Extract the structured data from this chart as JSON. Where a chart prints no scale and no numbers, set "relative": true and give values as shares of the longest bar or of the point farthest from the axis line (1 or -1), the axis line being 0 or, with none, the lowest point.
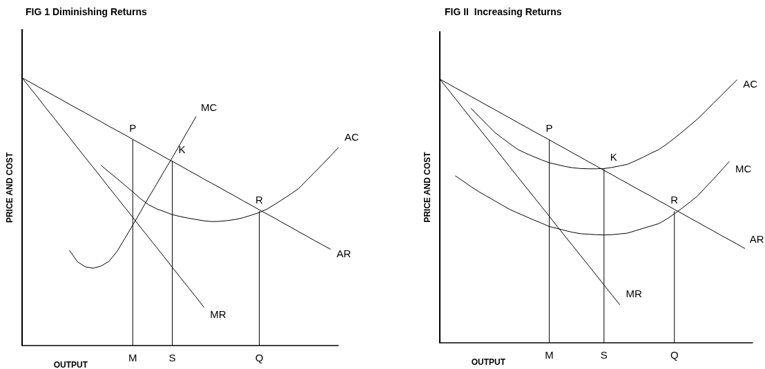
{
  "chart_data": [
    {
      "type": "line",
      "title": "FIG 1 Diminishing Returns",
      "xlabel": "OUTPUT",
      "ylabel": "PRICE AND COST",
      "relative": true,
      "marker": "none",
      "line_style": "solid",
      "grid": false,
      "legend": false,
      "tick_labels": "x",
      "categories": [
        null,
        null,
        null,
        null,
        null,
        null,
        null,
        null,
        null,
        null,
        null,
        null,
        null,
        null,
        "M",
        null,
        null,
        null,
        null,
        "S",
        null,
        null,
        null,
        null,
        null,
        null,
        null,
        null,
        null,
        null,
        "Q",
        null,
        null,
        null,
        null,
        null,
        null,
        null,
        null,
        null,
        null
      ],
      "series": [
        {
          "name": "AR",
          "color": "#000000",
          "values": [
            1.0,
            0.984,
            0.967,
            0.951,
            0.934,
            0.918,
            0.901,
            0.885,
            0.869,
            0.852,
            0.836,
            0.819,
            0.803,
            0.787,
            0.77,
            0.754,
            0.737,
            0.721,
            0.704,
            0.688,
            0.672,
            0.655,
            0.639,
            0.622,
            0.606,
            0.59,
            0.573,
            0.557,
            0.54,
            0.524,
            0.507,
            0.491,
            0.475,
            0.458,
            0.442,
            0.425,
            0.409,
            0.392,
            0.376,
            0.36,
            null
          ]
        },
        {
          "name": "MR",
          "color": "#000000",
          "values": [
            1.0,
            0.963,
            0.926,
            0.888,
            0.851,
            0.814,
            0.777,
            0.739,
            0.702,
            0.665,
            0.628,
            0.59,
            0.553,
            0.516,
            0.479,
            0.441,
            0.404,
            0.367,
            0.33,
            0.292,
            0.255,
            0.218,
            0.181,
            0.143,
            null,
            null,
            null,
            null,
            null,
            null,
            null,
            null,
            null,
            null,
            null,
            null,
            null,
            null,
            null,
            null,
            null
          ]
        },
        {
          "name": "MC",
          "color": "#000000",
          "values": [
            null,
            null,
            null,
            null,
            null,
            null,
            0.355,
            0.313,
            0.294,
            0.289,
            0.297,
            0.315,
            0.351,
            0.4,
            0.45,
            0.501,
            0.553,
            0.602,
            0.653,
            0.702,
            0.753,
            0.804,
            0.855,
            null,
            null,
            null,
            null,
            null,
            null,
            null,
            null,
            null,
            null,
            null,
            null,
            null,
            null,
            null,
            null,
            null,
            null
          ]
        },
        {
          "name": "AC",
          "color": "#000000",
          "values": [
            null,
            null,
            null,
            null,
            null,
            null,
            null,
            null,
            null,
            null,
            0.673,
            0.648,
            0.624,
            0.599,
            0.574,
            0.548,
            0.526,
            0.511,
            0.5,
            0.489,
            0.482,
            0.476,
            0.471,
            0.466,
            0.463,
            0.464,
            0.467,
            0.471,
            0.478,
            0.487,
            0.497,
            0.51,
            0.528,
            0.547,
            0.566,
            0.587,
            0.617,
            0.647,
            0.677,
            0.708,
            0.739
          ]
        },
        {
          "type": "bar",
          "color": "#000000",
          "values": [
            null,
            null,
            null,
            null,
            null,
            null,
            null,
            null,
            null,
            null,
            null,
            null,
            null,
            null,
            0.77,
            null,
            null,
            null,
            null,
            0.69,
            null,
            null,
            null,
            null,
            null,
            null,
            null,
            null,
            null,
            null,
            0.502,
            null,
            null,
            null,
            null,
            null,
            null,
            null,
            null,
            null,
            null
          ]
        }
      ],
      "annotations": [
        {
          "text": "P",
          "x": "M",
          "y": 0.77
        },
        {
          "text": "K",
          "x": "S",
          "y": 0.69
        },
        {
          "text": "R",
          "x": "Q",
          "y": 0.502
        }
      ]
    },
    {
      "type": "line",
      "title": "FIG II  Increasing Returns",
      "xlabel": "OUTPUT",
      "ylabel": "PRICE AND COST",
      "relative": true,
      "marker": "none",
      "line_style": "solid",
      "grid": false,
      "legend": false,
      "tick_labels": "x",
      "categories": [
        null,
        null,
        null,
        null,
        null,
        null,
        null,
        null,
        null,
        null,
        null,
        null,
        null,
        null,
        "M",
        null,
        null,
        null,
        null,
        null,
        null,
        "S",
        null,
        null,
        null,
        null,
        null,
        null,
        null,
        null,
        "Q",
        null,
        null,
        null,
        null,
        null,
        null,
        null,
        null,
        null,
        null
      ],
      "series": [
        {
          "name": "AC",
          "color": "#000000",
          "values": [
            null,
            null,
            null,
            null,
            0.889,
            0.859,
            0.829,
            0.799,
            0.776,
            0.754,
            0.733,
            0.719,
            0.706,
            0.694,
            0.683,
            0.676,
            0.669,
            0.664,
            0.661,
            0.66,
            0.66,
            0.661,
            0.665,
            0.671,
            0.677,
            0.69,
            0.704,
            0.719,
            0.733,
            0.753,
            0.776,
            0.8,
            0.825,
            0.85,
            0.879,
            0.909,
            0.938,
            0.968,
            0.997,
            null,
            null
          ]
        },
        {
          "name": "MC",
          "color": "#000000",
          "values": [
            null,
            null,
            0.633,
            0.613,
            0.592,
            0.573,
            0.556,
            0.539,
            0.522,
            0.505,
            0.492,
            0.479,
            0.466,
            0.454,
            0.441,
            0.434,
            0.426,
            0.419,
            0.414,
            0.412,
            0.41,
            0.409,
            0.41,
            0.413,
            0.416,
            0.425,
            0.434,
            0.443,
            0.452,
            0.469,
            0.489,
            0.511,
            0.534,
            0.558,
            0.59,
            0.621,
            0.654,
            0.687,
            null,
            null,
            null
          ]
        },
        {
          "name": "AR",
          "color": "#000000",
          "values": [
            1.0,
            0.984,
            0.967,
            0.951,
            0.934,
            0.918,
            0.901,
            0.885,
            0.868,
            0.852,
            0.835,
            0.819,
            0.802,
            0.786,
            0.77,
            0.753,
            0.737,
            0.72,
            0.704,
            0.687,
            0.671,
            0.654,
            0.638,
            0.621,
            0.605,
            0.588,
            0.572,
            0.556,
            0.539,
            0.523,
            0.506,
            0.49,
            0.473,
            0.457,
            0.44,
            0.424,
            0.407,
            0.391,
            0.375,
            0.358,
            null
          ]
        },
        {
          "name": "MR",
          "color": "#000000",
          "values": [
            1.0,
            0.963,
            0.926,
            0.888,
            0.851,
            0.814,
            0.777,
            0.74,
            0.703,
            0.665,
            0.628,
            0.591,
            0.554,
            0.517,
            0.48,
            0.442,
            0.405,
            0.368,
            0.331,
            0.294,
            0.257,
            0.219,
            0.182,
            0.145,
            null,
            null,
            null,
            null,
            null,
            null,
            null,
            null,
            null,
            null,
            null,
            null,
            null,
            null,
            null,
            null,
            null
          ]
        },
        {
          "type": "bar",
          "color": "#000000",
          "values": [
            null,
            null,
            null,
            null,
            null,
            null,
            null,
            null,
            null,
            null,
            null,
            null,
            null,
            null,
            0.771,
            null,
            null,
            null,
            null,
            null,
            null,
            0.661,
            null,
            null,
            null,
            null,
            null,
            null,
            null,
            null,
            0.499,
            null,
            null,
            null,
            null,
            null,
            null,
            null,
            null,
            null,
            null
          ]
        }
      ],
      "annotations": [
        {
          "text": "P",
          "x": "M",
          "y": 0.771
        },
        {
          "text": "K",
          "x": "S",
          "y": 0.661
        },
        {
          "text": "R",
          "x": "Q",
          "y": 0.499
        }
      ]
    }
  ]
}
